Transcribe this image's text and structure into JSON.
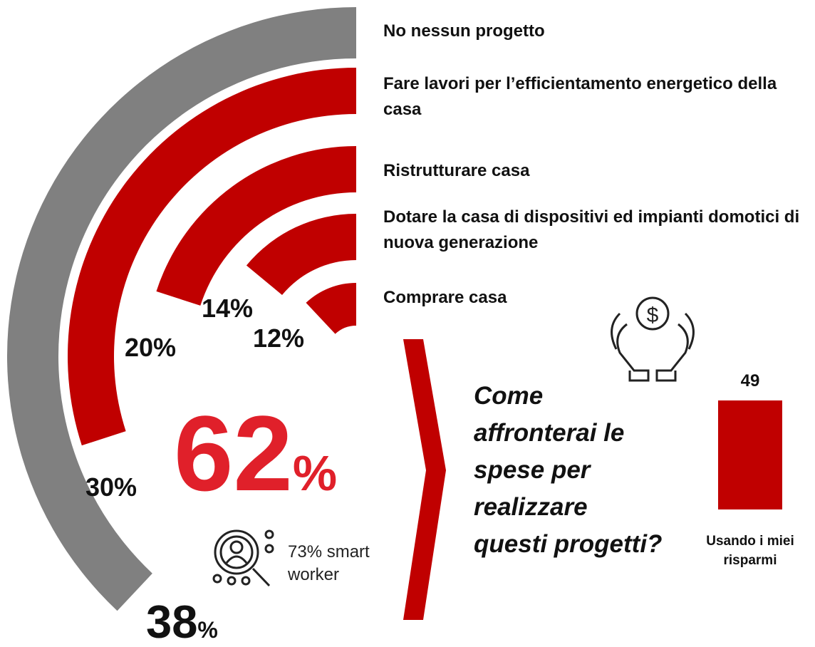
{
  "chart_data": [
    {
      "type": "radial_bar",
      "categories": [
        "No nessun progetto",
        "Fare lavori per l’efficientamento energetico della casa",
        "Ristrutturare casa",
        "Dotare la casa di dispositivi ed impianti domotici di nuova generazione",
        "Comprare casa"
      ],
      "values": [
        38,
        30,
        20,
        14,
        12
      ],
      "value_labels": [
        "38%",
        "30%",
        "20%",
        "14%",
        "12%"
      ],
      "colors": [
        "#808080",
        "#c00000",
        "#c00000",
        "#c00000",
        "#c00000"
      ],
      "headline": "62%",
      "note_lines": [
        "73% smart",
        "worker"
      ]
    },
    {
      "type": "bar",
      "question_lines": [
        "Come",
        "affronterai le",
        "spese per",
        "realizzare",
        "questi progetti?"
      ],
      "categories": [
        "Usando i miei risparmi"
      ],
      "values": [
        49
      ],
      "color": "#c00000"
    }
  ]
}
